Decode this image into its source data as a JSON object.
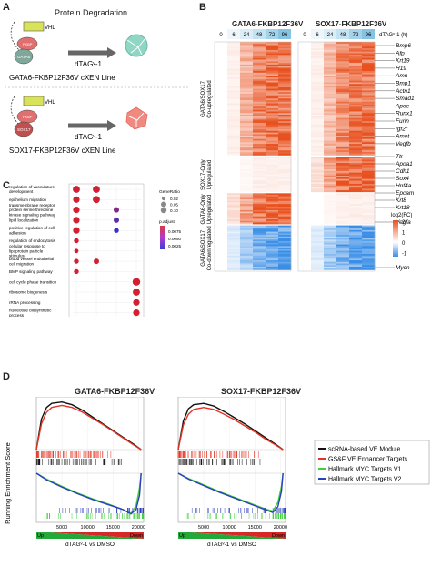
{
  "panel_a": {
    "letter": "A",
    "title": "Protein Degradation",
    "top": {
      "vhl": "VHL",
      "protein": "GATA6",
      "drug": "dTAGᵛ-1",
      "line_name": "GATA6-FKBP12F36V cXEN Line"
    },
    "bottom": {
      "vhl": "VHL",
      "protein": "SOX17",
      "drug": "dTAGᵛ-1",
      "line_name": "SOX17-FKBP12F36V cXEN Line"
    }
  },
  "panel_b": {
    "letter": "B",
    "heatmap1_title": "GATA6-FKBP12F36V",
    "heatmap2_title": "SOX17-FKBP12F36V",
    "timepoints": [
      "0",
      "6",
      "24",
      "48",
      "72",
      "96"
    ],
    "time_axis_label": "dTAGᵛ-1 (h)",
    "cluster_labels": [
      "GATA6/SOX17 Co-upregulated",
      "SOX17-Only Upregulated",
      "GATA6-Only Upregulated",
      "GATA6/SOX17 Co-downregulated"
    ],
    "genes": [
      "Bmp6",
      "Afp",
      "Krt19",
      "H19",
      "Amn",
      "Bmp1",
      "Actn1",
      "Smad1",
      "Apoe",
      "Runx1",
      "Furin",
      "Igf2r",
      "Amot",
      "Vegfb",
      "Ttr",
      "Apoa1",
      "Cdh1",
      "Sox4",
      "Hnf4a",
      "Epcam",
      "Krt8",
      "Krt18",
      "Vegfa",
      "Mycn"
    ],
    "colorbar_title": "log2(FC)",
    "colorbar_ticks": [
      "2",
      "1",
      "0",
      "-1"
    ],
    "colors": {
      "up": "#e8501e",
      "down": "#3a8ee6",
      "mid": "#ffffff"
    }
  },
  "panel_c": {
    "letter": "C",
    "legend_generatio_title": "GeneRatio",
    "legend_generatio_values": [
      "0.02",
      "0.05",
      "0.10"
    ],
    "legend_padj_title": "p.adjust",
    "legend_padj_values": [
      "0.0075",
      "0.0050",
      "0.0025"
    ]
  },
  "panel_d": {
    "letter": "D",
    "ylabel": "Running Enrichment Score",
    "plot1_title": "GATA6-FKBP12F36V",
    "plot2_title": "SOX17-FKBP12F36V",
    "xticks": [
      "5000",
      "10000",
      "15000",
      "20000"
    ],
    "bar_up": "Up",
    "bar_down": "Down",
    "bar_caption": "dTAGᵛ-1 vs DMSO",
    "legend": [
      {
        "label": "scRNA-based VE Module",
        "color": "#111111"
      },
      {
        "label": "GS&F VE Enhancer Targets",
        "color": "#e53222"
      },
      {
        "label": "Hallmark MYC Targets V1",
        "color": "#3fcf3f"
      },
      {
        "label": "Hallmark MYC Targets V2",
        "color": "#2b3fbf"
      }
    ]
  },
  "chart_data": [
    {
      "type": "scatter",
      "title": "",
      "categories": [
        "GATA6/SOX17 co-upregulated",
        "GATA6-Only upregulated",
        "SOX17-Only upregulated",
        "GATA6/SOX17 co-downregulated"
      ],
      "terms": [
        "regulation of vasculature development",
        "epithelium migration",
        "transmembrane receptor protein serine/threonine kinase signaling pathway",
        "lipid localization",
        "positive regulation of cell adhesion",
        "regulation of endocytosis",
        "cellular response to lipoprotein particle stimulus",
        "blood vessel endothelial cell migration",
        "BMP signaling pathway",
        "cell cycle phase transition",
        "ribosome biogenesis",
        "rRNA processing",
        "nucleotide biosynthetic process"
      ],
      "points": [
        {
          "term": 0,
          "group": 0,
          "gene_ratio": 0.08,
          "p_adjust": 0.0005
        },
        {
          "term": 0,
          "group": 1,
          "gene_ratio": 0.08,
          "p_adjust": 0.0005
        },
        {
          "term": 1,
          "group": 0,
          "gene_ratio": 0.07,
          "p_adjust": 0.0005
        },
        {
          "term": 1,
          "group": 1,
          "gene_ratio": 0.08,
          "p_adjust": 0.0005
        },
        {
          "term": 2,
          "group": 0,
          "gene_ratio": 0.07,
          "p_adjust": 0.0005
        },
        {
          "term": 2,
          "group": 2,
          "gene_ratio": 0.05,
          "p_adjust": 0.005
        },
        {
          "term": 3,
          "group": 0,
          "gene_ratio": 0.07,
          "p_adjust": 0.0005
        },
        {
          "term": 3,
          "group": 2,
          "gene_ratio": 0.05,
          "p_adjust": 0.0075
        },
        {
          "term": 4,
          "group": 0,
          "gene_ratio": 0.07,
          "p_adjust": 0.0005
        },
        {
          "term": 4,
          "group": 2,
          "gene_ratio": 0.04,
          "p_adjust": 0.009
        },
        {
          "term": 5,
          "group": 0,
          "gene_ratio": 0.04,
          "p_adjust": 0.0005
        },
        {
          "term": 6,
          "group": 0,
          "gene_ratio": 0.03,
          "p_adjust": 0.0005
        },
        {
          "term": 7,
          "group": 0,
          "gene_ratio": 0.04,
          "p_adjust": 0.0005
        },
        {
          "term": 7,
          "group": 1,
          "gene_ratio": 0.05,
          "p_adjust": 0.0005
        },
        {
          "term": 8,
          "group": 0,
          "gene_ratio": 0.04,
          "p_adjust": 0.0005
        },
        {
          "term": 9,
          "group": 3,
          "gene_ratio": 0.09,
          "p_adjust": 0.0005
        },
        {
          "term": 10,
          "group": 3,
          "gene_ratio": 0.08,
          "p_adjust": 0.0005
        },
        {
          "term": 11,
          "group": 3,
          "gene_ratio": 0.07,
          "p_adjust": 0.0005
        },
        {
          "term": 12,
          "group": 3,
          "gene_ratio": 0.07,
          "p_adjust": 0.0005
        }
      ]
    },
    {
      "type": "line",
      "title": "GATA6-FKBP12F36V",
      "xlabel": "",
      "ylabel": "Running Enrichment Score",
      "xlim": [
        0,
        21000
      ],
      "ylim": [
        -0.6,
        0.8
      ],
      "series": [
        {
          "name": "scRNA-based VE Module",
          "x": [
            0,
            1000,
            2000,
            3000,
            5000,
            7000,
            9000,
            11000,
            13000,
            15000,
            17000,
            19000,
            20500
          ],
          "y": [
            0,
            0.45,
            0.62,
            0.68,
            0.7,
            0.66,
            0.58,
            0.48,
            0.38,
            0.28,
            0.18,
            0.08,
            0
          ]
        },
        {
          "name": "GS&F VE Enhancer Targets",
          "x": [
            0,
            1000,
            2000,
            3000,
            5000,
            7000,
            9000,
            11000,
            13000,
            15000,
            17000,
            19000,
            20500
          ],
          "y": [
            0,
            0.38,
            0.55,
            0.62,
            0.65,
            0.62,
            0.55,
            0.46,
            0.37,
            0.27,
            0.17,
            0.07,
            0
          ]
        },
        {
          "name": "Hallmark MYC Targets V1",
          "x": [
            0,
            2000,
            5000,
            8000,
            11000,
            14000,
            17000,
            18500,
            19500,
            20200,
            20500
          ],
          "y": [
            0,
            -0.08,
            -0.18,
            -0.27,
            -0.35,
            -0.42,
            -0.5,
            -0.55,
            -0.45,
            -0.2,
            0
          ]
        },
        {
          "name": "Hallmark MYC Targets V2",
          "x": [
            0,
            2000,
            5000,
            8000,
            11000,
            14000,
            17000,
            18500,
            19500,
            20200,
            20500
          ],
          "y": [
            0,
            -0.09,
            -0.19,
            -0.28,
            -0.36,
            -0.43,
            -0.5,
            -0.56,
            -0.5,
            -0.3,
            0
          ]
        }
      ]
    },
    {
      "type": "line",
      "title": "SOX17-FKBP12F36V",
      "xlabel": "",
      "ylabel": "",
      "xlim": [
        0,
        21000
      ],
      "ylim": [
        -0.6,
        0.8
      ],
      "series": [
        {
          "name": "scRNA-based VE Module",
          "x": [
            0,
            1000,
            2000,
            3000,
            5000,
            7000,
            9000,
            11000,
            13000,
            15000,
            17000,
            19000,
            20500
          ],
          "y": [
            0,
            0.42,
            0.6,
            0.66,
            0.68,
            0.64,
            0.56,
            0.47,
            0.38,
            0.28,
            0.18,
            0.08,
            0
          ]
        },
        {
          "name": "GS&F VE Enhancer Targets",
          "x": [
            0,
            1000,
            2000,
            3000,
            5000,
            7000,
            9000,
            11000,
            13000,
            15000,
            17000,
            19000,
            20500
          ],
          "y": [
            0,
            0.36,
            0.52,
            0.59,
            0.62,
            0.59,
            0.52,
            0.44,
            0.35,
            0.26,
            0.16,
            0.07,
            0
          ]
        },
        {
          "name": "Hallmark MYC Targets V1",
          "x": [
            0,
            2000,
            5000,
            8000,
            11000,
            14000,
            17000,
            18500,
            19500,
            20200,
            20500
          ],
          "y": [
            0,
            -0.07,
            -0.16,
            -0.25,
            -0.33,
            -0.41,
            -0.49,
            -0.52,
            -0.4,
            -0.18,
            0
          ]
        },
        {
          "name": "Hallmark MYC Targets V2",
          "x": [
            0,
            2000,
            5000,
            8000,
            11000,
            14000,
            17000,
            18500,
            19500,
            20200,
            20500
          ],
          "y": [
            0,
            -0.08,
            -0.17,
            -0.26,
            -0.34,
            -0.42,
            -0.5,
            -0.54,
            -0.46,
            -0.25,
            0
          ]
        }
      ]
    }
  ]
}
